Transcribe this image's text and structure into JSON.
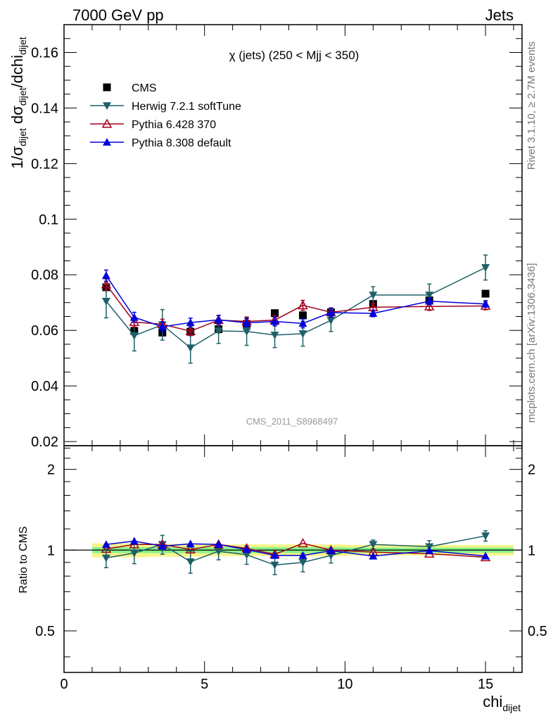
{
  "header": {
    "left": "7000 GeV pp",
    "right": "Jets"
  },
  "side_labels": {
    "rivet": "Rivet 3.1.10, ≥ 2.7M events",
    "mcplots": "mcplots.cern.ch [arXiv:1306.3436]"
  },
  "colors": {
    "cms": "#000000",
    "herwig": "#1f6068",
    "pythia6": "#a3001e",
    "pythia8": "#0000dd",
    "band_inner": "#86f28a",
    "band_outer": "#f6f58a"
  },
  "chart_data": [
    {
      "type": "scatter",
      "title": "χ (jets) (250 < Mjj <  350)",
      "watermark": "CMS_2011_S8968497",
      "ylabel": "1/σ_dijet dσ_dijet/dchi_dijet",
      "xlim": [
        0,
        16.3
      ],
      "ylim": [
        0.0185,
        0.17
      ],
      "yticks": [
        "0.02",
        "0.04",
        "0.06",
        "0.08",
        "0.1",
        "0.12",
        "0.14",
        "0.16"
      ],
      "legend_position": "top-left",
      "x": [
        1.5,
        2.5,
        3.5,
        4.5,
        5.5,
        6.5,
        7.5,
        8.5,
        9.5,
        11,
        13,
        15
      ],
      "series": [
        {
          "name": "CMS",
          "marker": "square",
          "values": [
            0.0755,
            0.0598,
            0.0592,
            0.0595,
            0.0604,
            0.0623,
            0.0662,
            0.0654,
            0.0665,
            0.0695,
            0.0708,
            0.0732
          ]
        },
        {
          "name": "Herwig 7.2.1 softTune",
          "marker": "triangle-down",
          "values": [
            0.0705,
            0.0581,
            0.062,
            0.0537,
            0.0598,
            0.0596,
            0.0583,
            0.0588,
            0.0636,
            0.0727,
            0.0727,
            0.0826
          ],
          "errors": [
            0.006,
            0.0055,
            0.0055,
            0.0055,
            0.0045,
            0.005,
            0.0045,
            0.0045,
            0.004,
            0.003,
            0.004,
            0.0045
          ]
        },
        {
          "name": "Pythia 6.428 370",
          "marker": "triangle-up-open",
          "values": [
            0.0765,
            0.063,
            0.0622,
            0.0597,
            0.0637,
            0.0632,
            0.0637,
            0.069,
            0.0665,
            0.0683,
            0.0686,
            0.0688
          ],
          "errors": [
            0.002,
            0.0018,
            0.0018,
            0.0016,
            0.0016,
            0.0016,
            0.0016,
            0.0018,
            0.0016,
            0.0014,
            0.0014,
            0.0014
          ]
        },
        {
          "name": "Pythia 8.308 default",
          "marker": "triangle-up",
          "values": [
            0.0797,
            0.0647,
            0.0613,
            0.0628,
            0.0638,
            0.0627,
            0.0632,
            0.0625,
            0.0664,
            0.0661,
            0.0705,
            0.0695
          ],
          "errors": [
            0.002,
            0.0018,
            0.0018,
            0.0016,
            0.0016,
            0.0016,
            0.0016,
            0.0016,
            0.0016,
            0.0012,
            0.0012,
            0.0012
          ]
        }
      ]
    },
    {
      "type": "scatter",
      "ylabel": "Ratio to CMS",
      "xlabel": "chi_dijet",
      "xlim": [
        0,
        16.3
      ],
      "ylim": [
        0.35,
        2.45
      ],
      "log_y": true,
      "yticks": [
        "0.5",
        "1",
        "2"
      ],
      "xticks": [
        "0",
        "5",
        "10",
        "15"
      ],
      "x": [
        1.5,
        2.5,
        3.5,
        4.5,
        5.5,
        6.5,
        7.5,
        8.5,
        9.5,
        11,
        13,
        15
      ],
      "bands": {
        "inner": [
          0.025,
          0.025,
          0.025,
          0.025,
          0.025,
          0.025,
          0.025,
          0.025,
          0.025,
          0.022,
          0.022,
          0.022
        ],
        "outer": [
          0.06,
          0.06,
          0.055,
          0.055,
          0.05,
          0.05,
          0.05,
          0.05,
          0.05,
          0.045,
          0.045,
          0.045
        ]
      },
      "series": [
        {
          "name": "Herwig 7.2.1 softTune",
          "marker": "triangle-down",
          "values": [
            0.935,
            0.975,
            1.05,
            0.905,
            0.99,
            0.96,
            0.88,
            0.9,
            0.955,
            1.05,
            1.03,
            1.13
          ],
          "errors": [
            0.075,
            0.085,
            0.085,
            0.085,
            0.07,
            0.075,
            0.07,
            0.07,
            0.06,
            0.04,
            0.055,
            0.05
          ]
        },
        {
          "name": "Pythia 6.428 370",
          "marker": "triangle-up-open",
          "values": [
            1.01,
            1.05,
            1.05,
            1.005,
            1.05,
            1.015,
            0.965,
            1.06,
            1.0,
            0.983,
            0.97,
            0.94
          ]
        },
        {
          "name": "Pythia 8.308 default",
          "marker": "triangle-up",
          "values": [
            1.05,
            1.08,
            1.035,
            1.055,
            1.05,
            1.005,
            0.955,
            0.955,
            0.995,
            0.95,
            0.995,
            0.95
          ]
        }
      ]
    }
  ]
}
